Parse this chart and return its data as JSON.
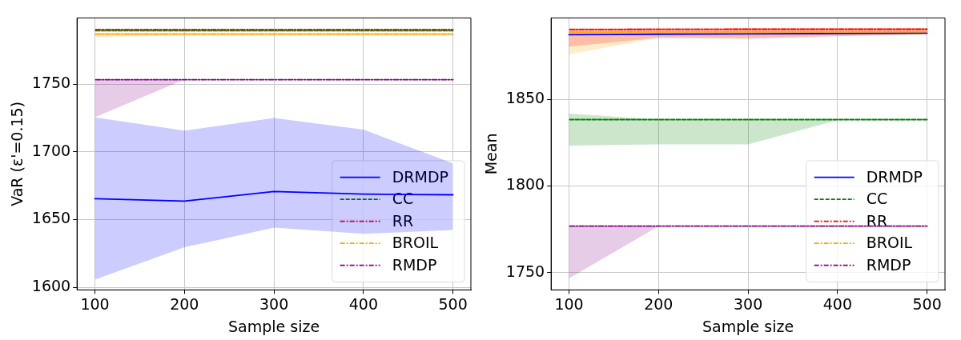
{
  "chart_data": [
    {
      "type": "line",
      "xlabel": "Sample size",
      "ylabel": "VaR (ε'=0.15)",
      "x": [
        100,
        200,
        300,
        400,
        500
      ],
      "xlim": [
        80,
        520
      ],
      "xticks": [
        100,
        200,
        300,
        400,
        500
      ],
      "ylim": [
        1598,
        1799
      ],
      "yticks": [
        1600,
        1650,
        1700,
        1750
      ],
      "grid": true,
      "legend": "lower right",
      "series": [
        {
          "name": "DRMDP",
          "color": "#0000ff",
          "line_style": "solid",
          "values": [
            1665.4,
            1663.6,
            1670.7,
            1668.8,
            1668.3
          ],
          "lower": [
            1605.6,
            1629.5,
            1644,
            1639.4,
            1642.3
          ],
          "upper": [
            1725.5,
            1715.7,
            1725,
            1716.4,
            1691.5
          ]
        },
        {
          "name": "CC",
          "color": "#008000",
          "line_style": "dashed",
          "values": [
            1789.5,
            1789.5,
            1789.5,
            1789.5,
            1789.5
          ]
        },
        {
          "name": "RR",
          "color": "#ff0000",
          "line_style": "dashdot",
          "values": [
            1790.5,
            1790.5,
            1790.5,
            1790.5,
            1790.5
          ]
        },
        {
          "name": "BROIL",
          "color": "#ffa500",
          "line_style": "dashdot",
          "values": [
            1787,
            1787,
            1787,
            1787,
            1787
          ],
          "lower": [
            1785,
            1786,
            1786,
            1786,
            1786
          ],
          "upper": [
            1788,
            1788,
            1788,
            1788,
            1788
          ]
        },
        {
          "name": "RMDP",
          "color": "#800080",
          "line_style": "dashdot",
          "values": [
            1753.4,
            1753.4,
            1753.4,
            1753.4,
            1753.4
          ],
          "lower": [
            1725.7,
            1753.4,
            1753.4,
            1753.4,
            1753.4
          ],
          "upper": [
            1753.4,
            1753.4,
            1753.4,
            1753.4,
            1753.4
          ]
        }
      ]
    },
    {
      "type": "line",
      "xlabel": "Sample size",
      "ylabel": "Mean",
      "x": [
        100,
        200,
        300,
        400,
        500
      ],
      "xlim": [
        80,
        520
      ],
      "xticks": [
        100,
        200,
        300,
        400,
        500
      ],
      "ylim": [
        1740,
        1897
      ],
      "yticks": [
        1750,
        1800,
        1850
      ],
      "grid": true,
      "legend": "lower right",
      "series": [
        {
          "name": "DRMDP",
          "color": "#0000ff",
          "line_style": "solid",
          "values": [
            1887.3,
            1887.6,
            1887.8,
            1888,
            1888.2
          ]
        },
        {
          "name": "CC",
          "color": "#008000",
          "line_style": "dashed",
          "values": [
            1838.3,
            1838.3,
            1838.3,
            1838.3,
            1838.3
          ],
          "lower": [
            1823.3,
            1824,
            1824,
            1838,
            1838
          ],
          "upper": [
            1841.8,
            1838.3,
            1838.3,
            1838.3,
            1838.3
          ]
        },
        {
          "name": "RR",
          "color": "#ff0000",
          "line_style": "dashdot",
          "values": [
            1890.3,
            1890.4,
            1890.5,
            1890.5,
            1890.5
          ],
          "lower": [
            1880.5,
            1885.5,
            1885,
            1886.5,
            1887.5
          ],
          "upper": [
            1891,
            1891,
            1891,
            1891,
            1891
          ]
        },
        {
          "name": "BROIL",
          "color": "#ffa500",
          "line_style": "dashdot",
          "values": [
            1888.8,
            1888.9,
            1889,
            1889,
            1889
          ],
          "lower": [
            1876,
            1885.5,
            1885.5,
            1886.5,
            1887.5
          ],
          "upper": [
            1891,
            1891,
            1891,
            1891,
            1891
          ]
        },
        {
          "name": "RMDP",
          "color": "#800080",
          "line_style": "dashdot",
          "values": [
            1776.8,
            1776.8,
            1776.8,
            1776.8,
            1776.8
          ],
          "lower": [
            1746.6,
            1776.8,
            1776.8,
            1776.8,
            1776.8
          ],
          "upper": [
            1776.8,
            1776.8,
            1776.8,
            1776.8,
            1776.8
          ]
        }
      ]
    }
  ]
}
